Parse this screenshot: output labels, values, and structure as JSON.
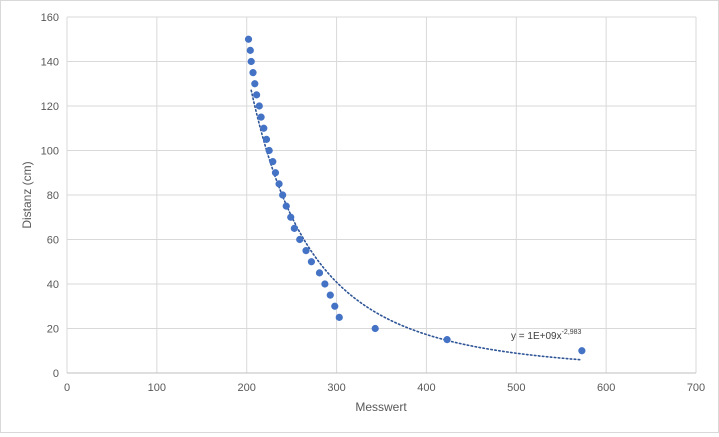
{
  "chart_data": {
    "type": "scatter",
    "title": "",
    "xlabel": "Messwert",
    "ylabel": "Distanz (cm)",
    "xlim": [
      0,
      700
    ],
    "ylim": [
      0,
      160
    ],
    "x_ticks": [
      0,
      100,
      200,
      300,
      400,
      500,
      600,
      700
    ],
    "y_ticks": [
      0,
      20,
      40,
      60,
      80,
      100,
      120,
      140,
      160
    ],
    "grid": true,
    "legend": "none",
    "series": [
      {
        "color": "#4472c4",
        "points": [
          [
            202,
            150
          ],
          [
            204,
            145
          ],
          [
            205,
            140
          ],
          [
            207,
            135
          ],
          [
            209,
            130
          ],
          [
            211,
            125
          ],
          [
            214,
            120
          ],
          [
            216,
            115
          ],
          [
            219,
            110
          ],
          [
            222,
            105
          ],
          [
            225,
            100
          ],
          [
            229,
            95
          ],
          [
            232,
            90
          ],
          [
            236,
            85
          ],
          [
            240,
            80
          ],
          [
            244,
            75
          ],
          [
            249,
            70
          ],
          [
            253,
            65
          ],
          [
            259,
            60
          ],
          [
            266,
            55
          ],
          [
            272,
            50
          ],
          [
            281,
            45
          ],
          [
            287,
            40
          ],
          [
            293,
            35
          ],
          [
            298,
            30
          ],
          [
            303,
            25
          ],
          [
            343,
            20
          ],
          [
            423,
            15
          ],
          [
            573,
            10
          ]
        ]
      }
    ],
    "trendline": {
      "type": "power",
      "color": "#2f5597",
      "style": "dotted",
      "coefficient": 1000000000,
      "exponent": -2.983,
      "x_range": [
        205,
        573
      ],
      "label_prefix": "y = 1E+09x",
      "label_exponent": "-2,983"
    }
  }
}
